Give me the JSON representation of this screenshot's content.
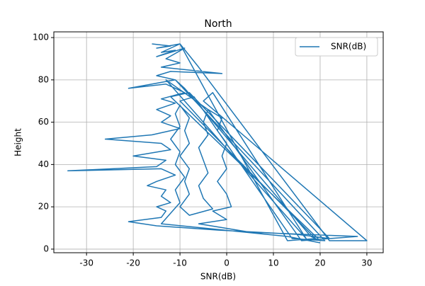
{
  "chart_data": {
    "type": "line",
    "title": "North",
    "x_label": "SNR(dB)",
    "y_label": "Height",
    "xlim": [
      -37,
      33.5
    ],
    "ylim": [
      -1.7,
      102.7
    ],
    "xticks": [
      -30,
      -20,
      -10,
      0,
      10,
      20,
      30
    ],
    "yticks": [
      0,
      20,
      40,
      60,
      80,
      100
    ],
    "grid": true,
    "legend": "upper right",
    "series": [
      {
        "name": "SNR(dB)",
        "color": "#1f77b4",
        "x": [
          -16,
          -12,
          -15,
          -10,
          -14,
          -11,
          -15,
          -9,
          -13,
          -10,
          -14,
          -1,
          -12,
          -15,
          -11,
          -21,
          -13,
          -9,
          -14,
          -11,
          -15,
          -12,
          -14,
          -10,
          -16,
          -26,
          -14,
          -12,
          -20,
          -13,
          -15,
          -34,
          -14,
          -11,
          -15,
          -17,
          -13,
          -14,
          -12,
          -15,
          -13,
          -14,
          -21,
          -15,
          -2,
          15,
          22,
          -8,
          -12,
          20,
          18,
          -9,
          -11,
          21,
          14,
          -7,
          -10,
          19,
          13,
          -10,
          -6,
          22,
          30,
          -5,
          -3,
          17,
          -13,
          -4,
          16,
          28,
          5,
          -6,
          0,
          -3,
          1,
          0,
          -2,
          0,
          -1,
          0,
          -2,
          -1,
          -4,
          -5,
          -4,
          -6,
          -5,
          -4,
          -6,
          -5,
          -3,
          -8,
          -10,
          -8,
          -9,
          -8,
          -10,
          -8,
          -9,
          -8,
          -10,
          -11,
          -10,
          -12,
          -10,
          -11,
          -9,
          -11,
          -10,
          -12,
          -14,
          13,
          20
        ],
        "values": [
          97,
          96,
          95,
          97,
          93,
          94,
          91,
          95,
          90,
          88,
          86,
          83,
          84,
          82,
          80,
          76,
          78,
          74,
          71,
          69,
          66,
          63,
          60,
          57,
          54,
          52,
          50,
          47,
          44,
          42,
          39,
          37,
          38,
          35,
          32,
          30,
          28,
          25,
          22,
          20,
          18,
          15,
          13,
          11,
          9,
          7,
          5,
          74,
          72,
          4,
          6,
          76,
          80,
          4,
          5,
          72,
          70,
          5,
          4,
          97,
          86,
          4,
          4,
          70,
          74,
          5,
          80,
          66,
          4,
          6,
          8,
          12,
          14,
          18,
          20,
          26,
          32,
          38,
          44,
          50,
          56,
          62,
          66,
          60,
          54,
          48,
          42,
          36,
          30,
          24,
          19,
          16,
          20,
          26,
          32,
          38,
          44,
          50,
          56,
          62,
          68,
          64,
          58,
          52,
          46,
          40,
          34,
          28,
          22,
          17,
          12,
          6,
          3
        ]
      }
    ]
  }
}
